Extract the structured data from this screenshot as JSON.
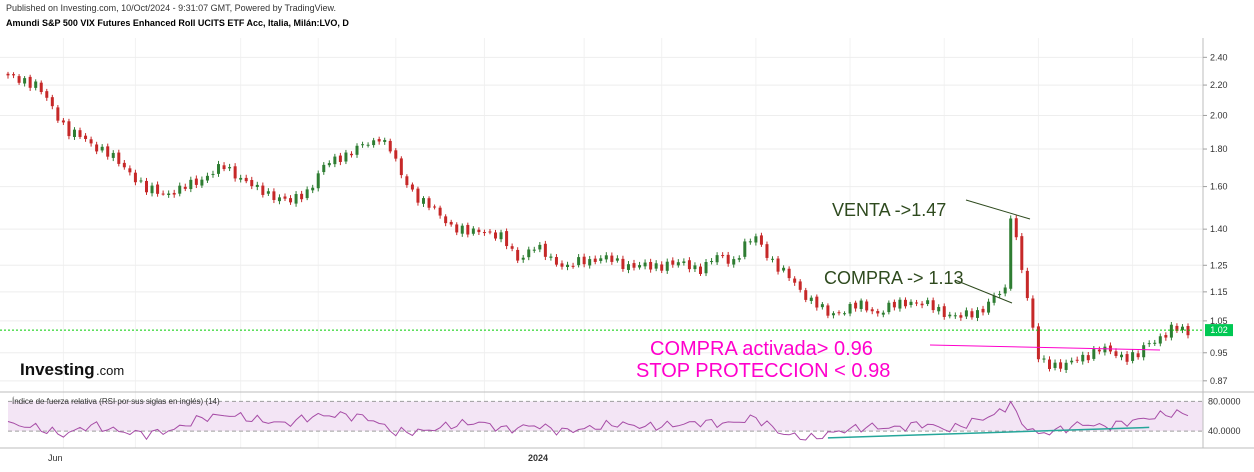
{
  "header": {
    "published": "Published on Investing.com, 10/Oct/2024 - 9:31:07 GMT, Powered by TradingView.",
    "title": "Amundi S&P 500 VIX Futures Enhanced Roll UCITS ETF Acc, Italia, Milán:LVO, D"
  },
  "logo": {
    "main": "Investing",
    "suffix": ".com"
  },
  "colors": {
    "up": "#2e7d32",
    "down": "#c62828",
    "rsi": "#a64ca6",
    "last_price": "#00cc00",
    "annotation_dark": "#2e4a1e",
    "annotation_magenta": "#ff00cc",
    "trendline": "#26a69a"
  },
  "annotations": {
    "venta": "VENTA ->1.47",
    "compra": "COMPRA -> 1.13",
    "compra_activada": "COMPRA activada> 0.96",
    "stop": "STOP PROTECCION < 0.98"
  },
  "chart_data": [
    {
      "type": "candlestick",
      "title": "Amundi S&P 500 VIX Futures Enhanced Roll UCITS ETF Acc, Italia, Milán:LVO, D",
      "scale": "log",
      "y_ticks": [
        "2.40",
        "2.20",
        "2.00",
        "1.80",
        "1.60",
        "1.40",
        "1.25",
        "1.15",
        "1.05",
        "0.95",
        "0.87"
      ],
      "y_tick_values": [
        2.4,
        2.2,
        2.0,
        1.8,
        1.6,
        1.4,
        1.25,
        1.15,
        1.05,
        0.95,
        0.87
      ],
      "ylim": [
        0.84,
        2.55
      ],
      "x_labels": [
        "Jun",
        "2024"
      ],
      "last_price": "1.02",
      "last_price_value": 1.02,
      "close_path": [
        [
          0,
          2.25
        ],
        [
          3,
          2.24
        ],
        [
          5,
          2.2
        ],
        [
          8,
          2.05
        ],
        [
          11,
          1.9
        ],
        [
          14,
          1.85
        ],
        [
          17,
          1.8
        ],
        [
          20,
          1.72
        ],
        [
          22,
          1.68
        ],
        [
          25,
          1.58
        ],
        [
          28,
          1.57
        ],
        [
          31,
          1.58
        ],
        [
          33,
          1.61
        ],
        [
          36,
          1.66
        ],
        [
          39,
          1.7
        ],
        [
          42,
          1.65
        ],
        [
          45,
          1.58
        ],
        [
          48,
          1.56
        ],
        [
          51,
          1.52
        ],
        [
          54,
          1.58
        ],
        [
          57,
          1.7
        ],
        [
          60,
          1.76
        ],
        [
          63,
          1.8
        ],
        [
          66,
          1.84
        ],
        [
          67,
          1.88
        ],
        [
          69,
          1.8
        ],
        [
          71,
          1.65
        ],
        [
          74,
          1.55
        ],
        [
          77,
          1.48
        ],
        [
          80,
          1.42
        ],
        [
          83,
          1.38
        ],
        [
          86,
          1.4
        ],
        [
          89,
          1.36
        ],
        [
          92,
          1.28
        ],
        [
          95,
          1.32
        ],
        [
          98,
          1.28
        ],
        [
          101,
          1.24
        ],
        [
          104,
          1.27
        ],
        [
          107,
          1.28
        ],
        [
          110,
          1.26
        ],
        [
          113,
          1.25
        ],
        [
          116,
          1.24
        ],
        [
          119,
          1.26
        ],
        [
          122,
          1.25
        ],
        [
          125,
          1.24
        ],
        [
          128,
          1.28
        ],
        [
          131,
          1.27
        ],
        [
          133,
          1.33
        ],
        [
          135,
          1.36
        ],
        [
          137,
          1.3
        ],
        [
          139,
          1.24
        ],
        [
          142,
          1.18
        ],
        [
          145,
          1.12
        ],
        [
          148,
          1.07
        ],
        [
          151,
          1.09
        ],
        [
          154,
          1.1
        ],
        [
          157,
          1.08
        ],
        [
          160,
          1.1
        ],
        [
          163,
          1.12
        ],
        [
          166,
          1.1
        ],
        [
          169,
          1.08
        ],
        [
          172,
          1.06
        ],
        [
          175,
          1.08
        ],
        [
          178,
          1.13
        ],
        [
          180,
          1.15
        ],
        [
          181,
          1.47
        ],
        [
          182,
          1.36
        ],
        [
          183,
          1.25
        ],
        [
          184,
          1.12
        ],
        [
          185,
          1.02
        ],
        [
          186,
          0.93
        ],
        [
          188,
          0.92
        ],
        [
          191,
          0.91
        ],
        [
          194,
          0.94
        ],
        [
          197,
          0.96
        ],
        [
          199,
          0.95
        ],
        [
          202,
          0.94
        ],
        [
          204,
          0.94
        ],
        [
          206,
          0.98
        ],
        [
          208,
          1.0
        ],
        [
          210,
          1.02
        ],
        [
          212,
          1.02
        ],
        [
          213,
          1.01
        ]
      ],
      "n_bars": 214
    },
    {
      "type": "line",
      "title": "Índice de fuerza relativa (RSI por sus siglas en inglés) (14)",
      "y_ticks": [
        "80.0000",
        "40.0000"
      ],
      "y_tick_values": [
        80,
        40
      ],
      "ylim": [
        20,
        90
      ],
      "series": [
        {
          "x": [
            0,
            5,
            10,
            15,
            20,
            25,
            30,
            35,
            40,
            45,
            50,
            55,
            60,
            65,
            70,
            75,
            80,
            85,
            90,
            95,
            100,
            105,
            110,
            115,
            120,
            125,
            130,
            135,
            140,
            145,
            150,
            155,
            160,
            165,
            170,
            175,
            178,
            180,
            181,
            182,
            184,
            186,
            190,
            194,
            198,
            202,
            206,
            210,
            213
          ],
          "values": [
            50,
            45,
            35,
            48,
            40,
            36,
            42,
            58,
            62,
            55,
            50,
            60,
            62,
            58,
            38,
            40,
            48,
            52,
            42,
            48,
            40,
            44,
            50,
            46,
            48,
            52,
            50,
            58,
            36,
            30,
            40,
            46,
            44,
            50,
            42,
            55,
            62,
            70,
            82,
            60,
            45,
            36,
            42,
            50,
            46,
            52,
            58,
            64,
            63
          ]
        },
        {
          "x": [
            148,
            206
          ],
          "values": [
            31,
            45
          ]
        }
      ]
    }
  ]
}
